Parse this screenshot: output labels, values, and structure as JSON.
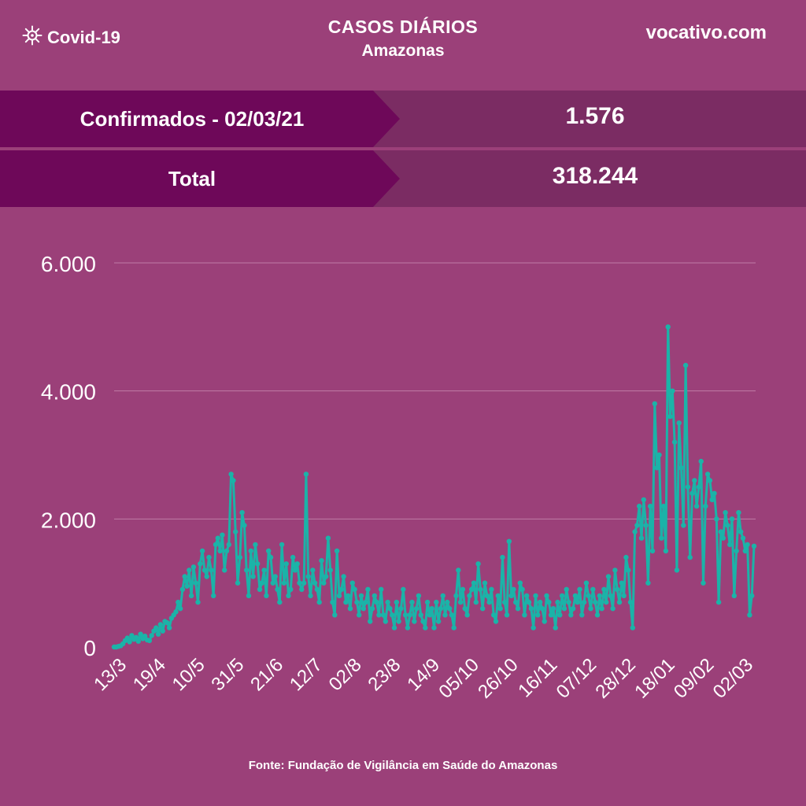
{
  "header": {
    "brand": "Covid-19",
    "brand_icon": "virus-icon",
    "title": "CASOS DIÁRIOS",
    "subtitle": "Amazonas",
    "site": "vocativo.com"
  },
  "stats": [
    {
      "label": "Confirmados - 02/03/21",
      "value": "1.576"
    },
    {
      "label": "Total",
      "value": "318.244"
    }
  ],
  "source": "Fonte: Fundação de Vigilância em Saúde do Amazonas",
  "colors": {
    "background": "#9b4079",
    "label_box": "#6e0859",
    "value_box": "#7b2c63",
    "line": "#1bb3a8"
  },
  "chart_data": {
    "type": "line",
    "title": "",
    "xlabel": "",
    "ylabel": "",
    "ylim": [
      0,
      6000
    ],
    "yticks": [
      {
        "value": 0,
        "label": "0"
      },
      {
        "value": 2000,
        "label": "2.000"
      },
      {
        "value": 4000,
        "label": "4.000"
      },
      {
        "value": 6000,
        "label": "6.000"
      }
    ],
    "x_tick_labels": [
      "13/3",
      "19/4",
      "10/5",
      "31/5",
      "21/6",
      "12/7",
      "02/8",
      "23/8",
      "14/9",
      "05/10",
      "26/10",
      "16/11",
      "07/12",
      "28/12",
      "18/01",
      "09/02",
      "02/03"
    ],
    "grid": true,
    "legend": "none",
    "series": [
      {
        "values": [
          0,
          0,
          10,
          20,
          50,
          100,
          140,
          80,
          180,
          120,
          150,
          90,
          200,
          130,
          170,
          110,
          100,
          180,
          250,
          300,
          200,
          350,
          250,
          400,
          380,
          300,
          450,
          500,
          550,
          700,
          600,
          900,
          1100,
          950,
          1200,
          800,
          1250,
          1000,
          700,
          1300,
          1500,
          1200,
          1100,
          1400,
          1200,
          800,
          1600,
          1700,
          1500,
          1750,
          1200,
          1500,
          1600,
          2700,
          2600,
          1800,
          1000,
          1400,
          2100,
          1900,
          1200,
          800,
          1500,
          1100,
          1600,
          1300,
          900,
          1000,
          1200,
          800,
          1500,
          1400,
          1000,
          1100,
          900,
          700,
          1600,
          1000,
          1300,
          800,
          900,
          1400,
          1200,
          1300,
          1000,
          900,
          1000,
          2700,
          1100,
          800,
          1200,
          1000,
          900,
          700,
          1350,
          1000,
          1100,
          1700,
          1200,
          700,
          500,
          1500,
          800,
          900,
          1100,
          700,
          800,
          600,
          1000,
          900,
          700,
          500,
          800,
          600,
          700,
          900,
          400,
          600,
          800,
          700,
          500,
          900,
          500,
          400,
          700,
          600,
          500,
          300,
          700,
          400,
          600,
          900,
          500,
          300,
          500,
          700,
          400,
          600,
          800,
          500,
          400,
          300,
          700,
          500,
          600,
          300,
          700,
          400,
          600,
          800,
          500,
          700,
          600,
          500,
          300,
          800,
          1200,
          700,
          900,
          600,
          500,
          800,
          900,
          1000,
          700,
          1300,
          900,
          600,
          1000,
          800,
          700,
          900,
          500,
          400,
          800,
          600,
          1400,
          700,
          500,
          1650,
          800,
          900,
          700,
          600,
          1000,
          900,
          500,
          800,
          700,
          600,
          300,
          800,
          500,
          700,
          600,
          400,
          800,
          700,
          500,
          600,
          300,
          700,
          500,
          800,
          600,
          900,
          700,
          500,
          600,
          800,
          700,
          900,
          500,
          700,
          1000,
          800,
          600,
          900,
          700,
          500,
          800,
          600,
          900,
          700,
          1100,
          800,
          600,
          1200,
          900,
          700,
          1000,
          800,
          1400,
          1200,
          700,
          300,
          1800,
          1900,
          2200,
          1700,
          2300,
          1900,
          1000,
          2200,
          1500,
          3800,
          2800,
          3000,
          1700,
          2200,
          1500,
          5000,
          3600,
          4000,
          3200,
          1200,
          3500,
          2800,
          1900,
          4400,
          2500,
          1400,
          2400,
          2600,
          2200,
          2500,
          2900,
          1000,
          2200,
          2700,
          2600,
          2300,
          2400,
          2000,
          700,
          1800,
          1700,
          2100,
          1900,
          1600,
          2000,
          800,
          1500,
          2100,
          1800,
          1700,
          1500,
          1600,
          500,
          800,
          1576
        ]
      }
    ]
  }
}
